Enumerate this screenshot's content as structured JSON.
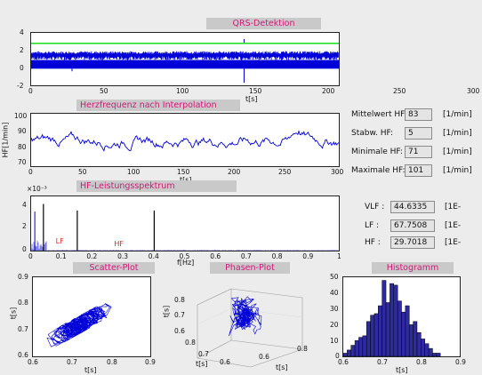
{
  "colors": {
    "window_bg": "#ececec",
    "plot_bg": "#ffffff",
    "signal": "#0000d8",
    "threshold": "#00dd00",
    "peaks": "#000000",
    "band_label": "#dd2222",
    "title_text": "#d0187a",
    "title_bg": "#c9c9c9",
    "bars": "#2e2aa0"
  },
  "qrs": {
    "title": "QRS-Detektion",
    "xlabel": "t[s]",
    "yticks": [
      "4",
      "2",
      "0",
      "-2"
    ],
    "xticks": [
      "0",
      "50",
      "100",
      "150",
      "200",
      "250",
      "300"
    ]
  },
  "hr": {
    "title": "Herzfrequenz nach Interpolation",
    "ylabel": "HF[1/min]",
    "xlabel": "t[s]",
    "yticks": [
      "100",
      "90",
      "80",
      "70"
    ],
    "xticks": [
      "0",
      "50",
      "100",
      "150",
      "200",
      "250",
      "300"
    ]
  },
  "stats": [
    {
      "label": "Mittelwert HF:",
      "value": "83",
      "unit": "[1/min]"
    },
    {
      "label": "Stabw. HF:",
      "value": "5",
      "unit": "[1/min]"
    },
    {
      "label": "Minimale HF:",
      "value": "71",
      "unit": "[1/min]"
    },
    {
      "label": "Maximale HF:",
      "value": "101",
      "unit": "[1/min]"
    }
  ],
  "psd": {
    "title": "HF-Leistungsspektrum",
    "exponent": "×10⁻³",
    "xlabel": "f[Hz]",
    "yticks": [
      "4",
      "2",
      "0"
    ],
    "xticks": [
      "0",
      "0.1",
      "0.2",
      "0.3",
      "0.4",
      "0.5",
      "0.6",
      "0.7",
      "0.8",
      "0.9",
      "1"
    ],
    "band_labels": [
      "LF",
      "HF"
    ]
  },
  "power": [
    {
      "label": "VLF :",
      "value": "44.6335",
      "unit": "[1E-"
    },
    {
      "label": "LF :",
      "value": "67.7508",
      "unit": "[1E-"
    },
    {
      "label": "HF :",
      "value": "29.7018",
      "unit": "[1E-"
    }
  ],
  "scatter": {
    "title": "Scatter-Plot",
    "xlabel": "t[s]",
    "ylabel": "t[s]",
    "yticks": [
      "0.9",
      "0.8",
      "0.7",
      "0.6"
    ],
    "xticks": [
      "0.6",
      "0.7",
      "0.8",
      "0.9"
    ]
  },
  "phase": {
    "title": "Phasen-Plot",
    "ylabel": "t[s]",
    "xlabel1": "t[s]",
    "xlabel2": "t[s]",
    "zticks": [
      "0.8",
      "0.7",
      "0.6"
    ],
    "xticks1": [
      "0.8",
      "0.7",
      "0.6"
    ],
    "xticks2": [
      "0.6",
      "0.8"
    ]
  },
  "histogram": {
    "title": "Histogramm",
    "xlabel": "t[s]",
    "yticks": [
      "50",
      "40",
      "30",
      "20",
      "10",
      "0"
    ],
    "xticks": [
      "0.6",
      "0.7",
      "0.8",
      "0.9"
    ]
  },
  "chart_data": [
    {
      "type": "line",
      "title": "QRS-Detektion",
      "xlabel": "t[s]",
      "xlim": [
        0,
        300
      ],
      "ylim": [
        -2,
        4
      ],
      "series": [
        {
          "values_desc": "ECG"
        }
      ],
      "threshold_y": 2.8
    },
    {
      "type": "line",
      "title": "Herzfrequenz nach Interpolation",
      "xlabel": "t[s]",
      "ylabel": "HF[1/min]",
      "xlim": [
        0,
        300
      ],
      "ylim": [
        65,
        102
      ]
    },
    {
      "type": "bar",
      "title": "HF-Leistungsspektrum",
      "xlabel": "f[Hz]",
      "xlim": [
        0,
        1
      ],
      "ylim": [
        0,
        0.005
      ],
      "peaks": [
        {
          "x": 0.04,
          "y": 0.0043
        },
        {
          "x": 0.15,
          "y": 0.0037
        },
        {
          "x": 0.4,
          "y": 0.0037
        }
      ]
    },
    {
      "type": "scatter",
      "title": "Scatter-Plot",
      "xlabel": "t[s]",
      "ylabel": "t[s]",
      "xlim": [
        0.6,
        0.9
      ],
      "ylim": [
        0.6,
        0.9
      ]
    },
    {
      "type": "bar",
      "title": "Histogramm",
      "xlabel": "t[s]",
      "xlim": [
        0.6,
        0.9
      ],
      "ylim": [
        0,
        50
      ],
      "categories": [
        0.6,
        0.61,
        0.62,
        0.63,
        0.64,
        0.65,
        0.66,
        0.67,
        0.68,
        0.69,
        0.7,
        0.71,
        0.72,
        0.73,
        0.74,
        0.75,
        0.76,
        0.77,
        0.78,
        0.79,
        0.8,
        0.81,
        0.82,
        0.83,
        0.84,
        0.85
      ],
      "values": [
        2,
        4,
        7,
        10,
        12,
        13,
        22,
        26,
        27,
        32,
        48,
        34,
        46,
        45,
        35,
        28,
        32,
        20,
        22,
        15,
        11,
        8,
        5,
        2,
        2,
        0
      ]
    }
  ]
}
